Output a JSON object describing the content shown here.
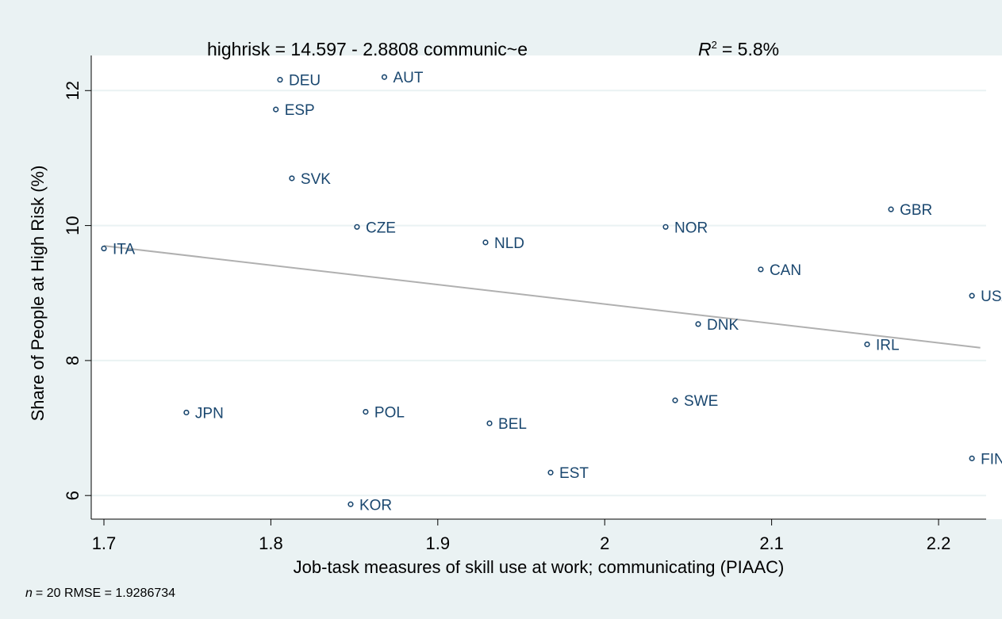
{
  "chart_data": {
    "type": "scatter",
    "title": "highrisk = 14.597 - 2.8808 communic~e",
    "r2_symbol": "R",
    "r2_sup": "2",
    "r2_text": "= 5.8%",
    "x_label": "Job-task measures of skill use at work; communicating (PIAAC)",
    "y_label": "Share of People at High Risk (%)",
    "note_n": "n",
    "note_text": "= 20   RMSE = 1.9286734",
    "color": "#1a476f",
    "grid": true,
    "xlim": [
      1.6924,
      2.2285
    ],
    "ylim": [
      5.65,
      12.52
    ],
    "xticks": [
      1.7,
      1.8,
      1.9,
      2,
      2.1,
      2.2
    ],
    "yticks": [
      6,
      8,
      10,
      12
    ],
    "series": [
      {
        "name": "highrisk",
        "color": "#1a476f",
        "labels": [
          "ITA",
          "JPN",
          "DEU",
          "ESP",
          "SVK",
          "AUT",
          "CZE",
          "POL",
          "KOR",
          "NLD",
          "BEL",
          "EST",
          "NOR",
          "SWE",
          "DNK",
          "CAN",
          "GBR",
          "IRL",
          "USA",
          "FIN"
        ],
        "x": [
          1.7,
          1.7494,
          1.8055,
          1.803,
          1.8126,
          1.868,
          1.8516,
          1.8568,
          1.8478,
          1.9286,
          1.931,
          1.9676,
          2.0365,
          2.0422,
          2.056,
          2.0935,
          2.1715,
          2.1572,
          2.22,
          2.22
        ],
        "values": [
          9.66,
          7.23,
          12.16,
          11.72,
          10.7,
          12.2,
          9.98,
          7.24,
          5.87,
          9.75,
          7.07,
          6.34,
          9.98,
          7.41,
          8.54,
          9.35,
          10.24,
          8.24,
          8.96,
          6.55
        ]
      }
    ],
    "fit_line": {
      "color": "#b0b0b0",
      "x": [
        1.7,
        2.225
      ],
      "values": [
        9.7,
        8.19
      ]
    }
  }
}
